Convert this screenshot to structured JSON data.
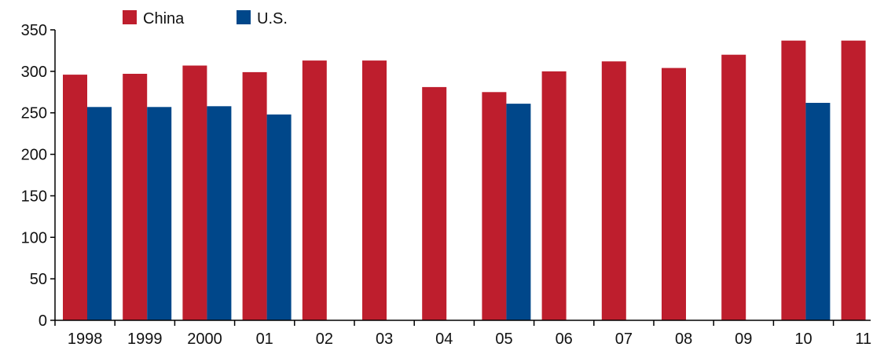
{
  "chart_data": {
    "type": "bar",
    "categories": [
      "1998",
      "1999",
      "2000",
      "01",
      "02",
      "03",
      "04",
      "05",
      "06",
      "07",
      "08",
      "09",
      "10",
      "11"
    ],
    "series": [
      {
        "name": "China",
        "color": "#be1e2d",
        "values": [
          296,
          297,
          307,
          299,
          313,
          313,
          281,
          275,
          300,
          312,
          304,
          320,
          337,
          337
        ]
      },
      {
        "name": "U.S.",
        "color": "#00478a",
        "values": [
          257,
          257,
          258,
          248,
          null,
          null,
          null,
          261,
          null,
          null,
          null,
          null,
          262,
          null
        ]
      }
    ],
    "ylim": [
      0,
      350
    ],
    "yticks": [
      0,
      50,
      100,
      150,
      200,
      250,
      300,
      350
    ],
    "grid": false,
    "legend_position": "top-left"
  }
}
